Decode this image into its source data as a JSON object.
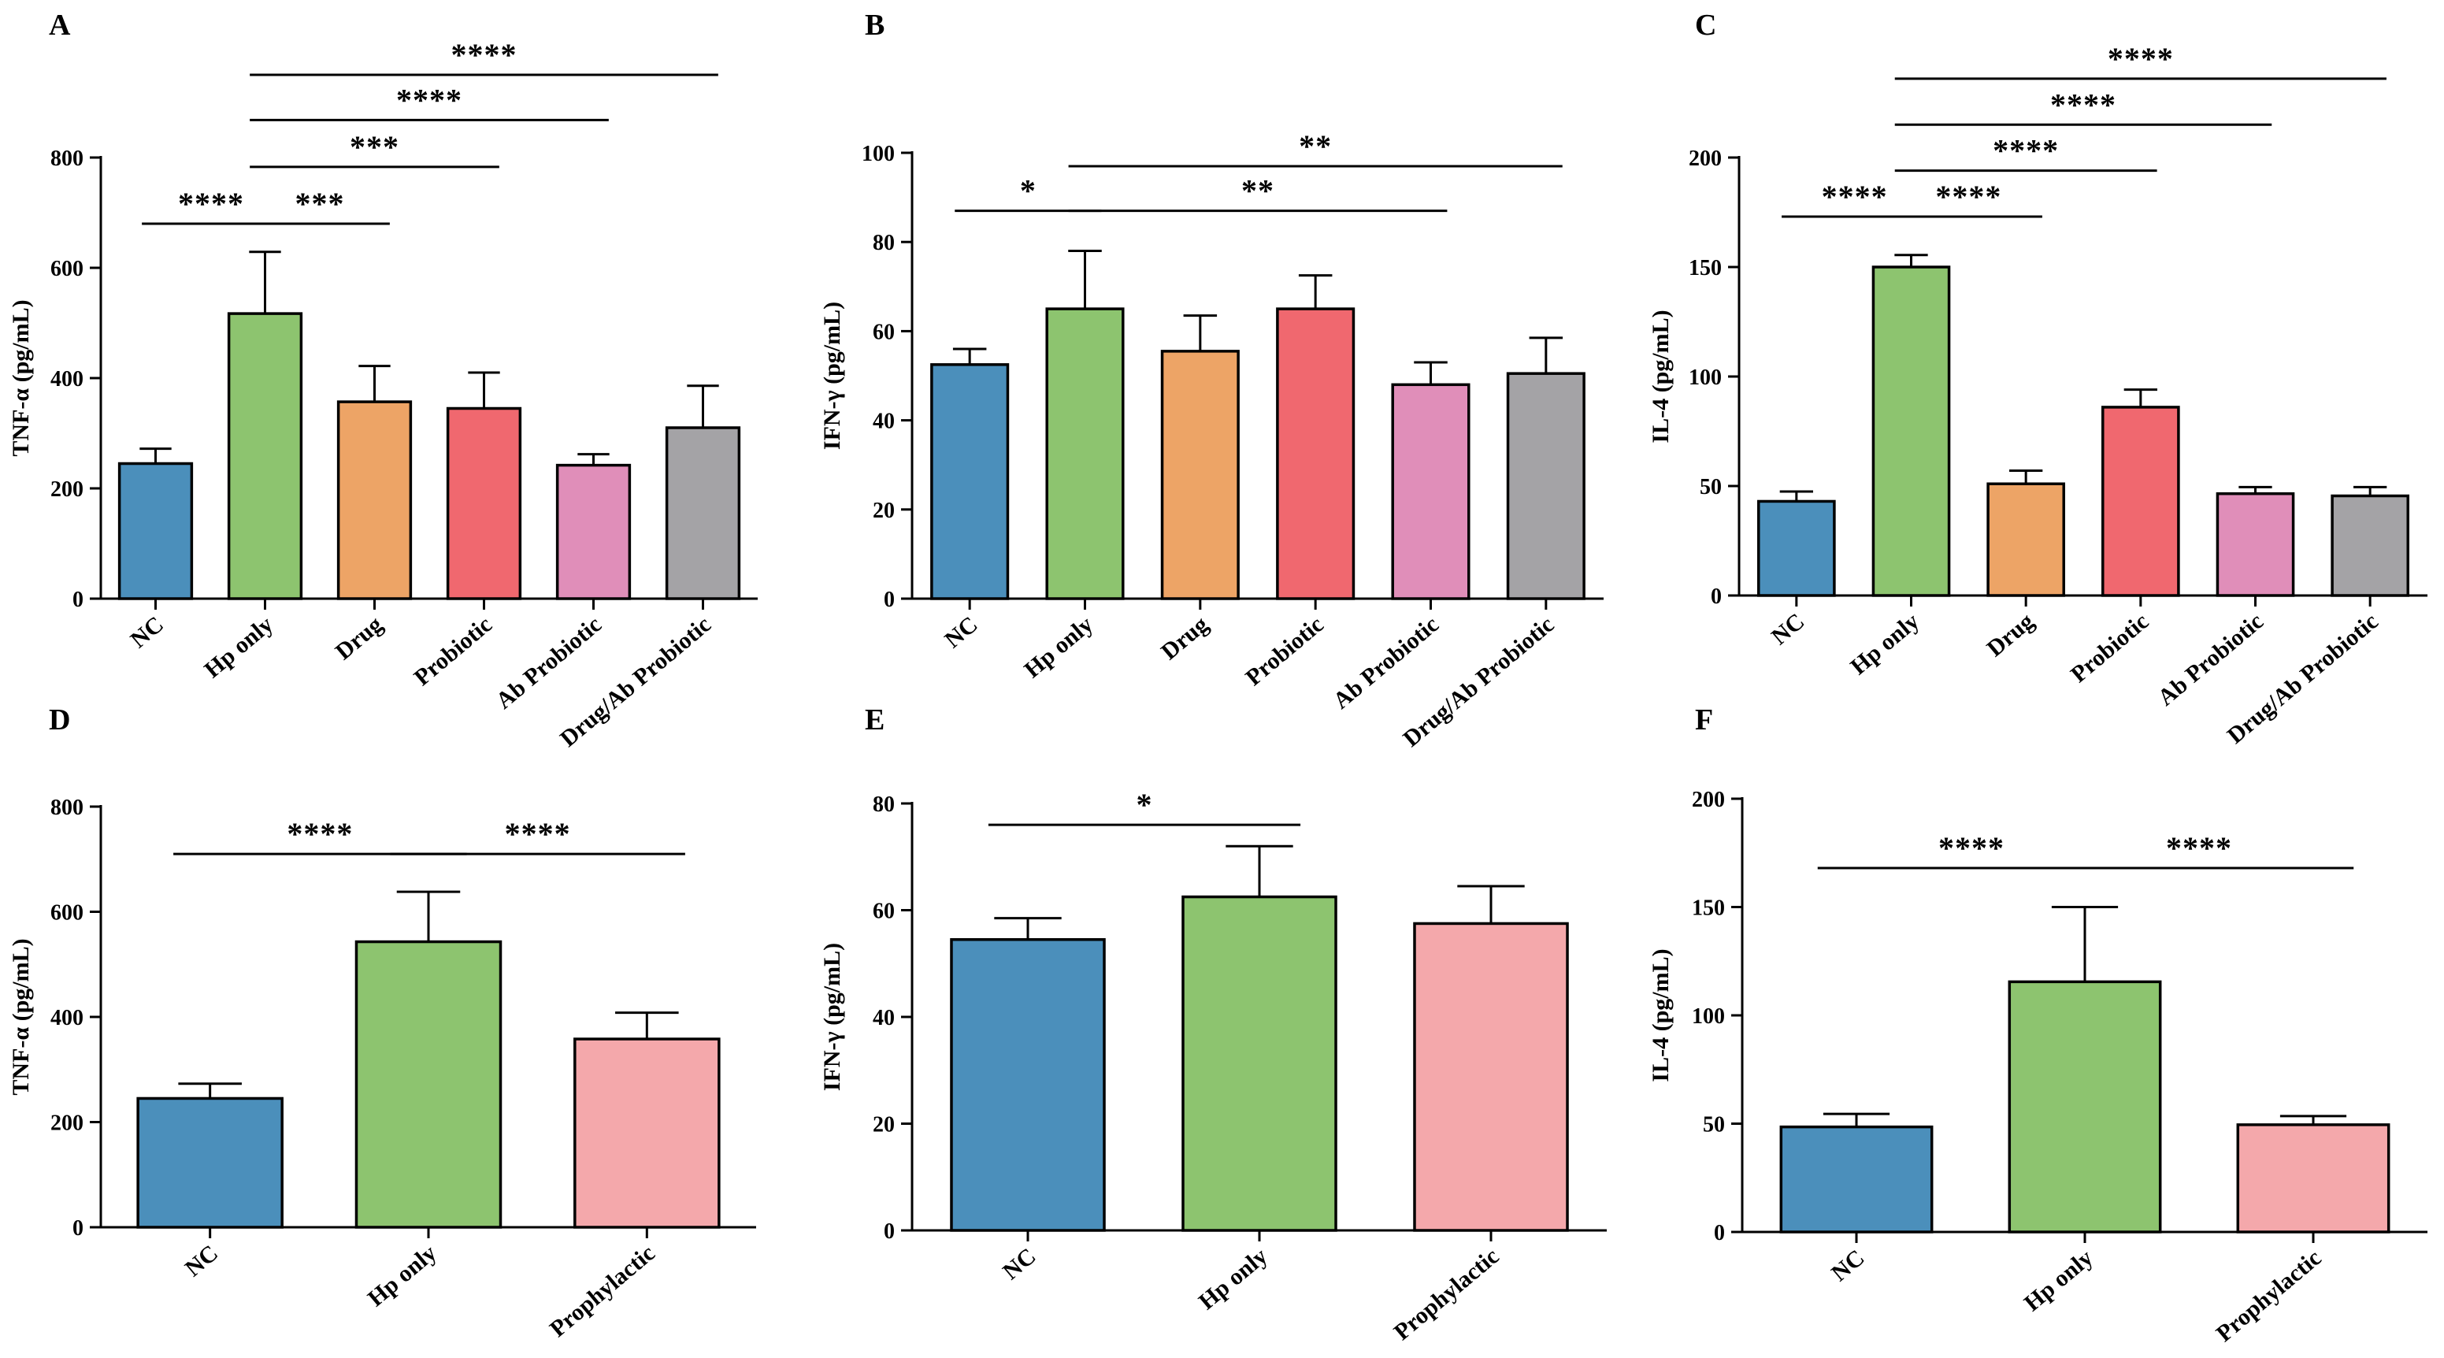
{
  "colors": {
    "nc": "#4b8fbb",
    "hp": "#8dc46f",
    "drug": "#eda466",
    "probiotic": "#f0686f",
    "ab_probiotic": "#e08eb9",
    "combo": "#a4a3a6",
    "prophylactic": "#f4a8ab"
  },
  "chart_data": [
    {
      "type": "bar",
      "panel": "A",
      "ylabel": "TNF-α (pg/mL)",
      "ylim": [
        0,
        800
      ],
      "yticks": [
        0,
        200,
        400,
        600,
        800
      ],
      "categories": [
        "NC",
        "Hp only",
        "Drug",
        "Probiotic",
        "Ab Probiotic",
        "Drug/Ab Probiotic"
      ],
      "values": [
        245,
        517,
        357,
        345,
        242,
        310
      ],
      "errors": [
        27,
        112,
        65,
        65,
        20,
        76
      ],
      "bar_colors": [
        "nc",
        "hp",
        "drug",
        "probiotic",
        "ab_probiotic",
        "combo"
      ],
      "significance": [
        {
          "from": 0,
          "to": 1,
          "label": "****",
          "y": 680
        },
        {
          "from": 1,
          "to": 2,
          "label": "***",
          "y": 680
        },
        {
          "from": 1,
          "to": 3,
          "label": "***",
          "y": 783
        },
        {
          "from": 1,
          "to": 4,
          "label": "****",
          "y": 868
        },
        {
          "from": 1,
          "to": 5,
          "label": "****",
          "y": 950
        }
      ]
    },
    {
      "type": "bar",
      "panel": "B",
      "ylabel": "IFN-γ (pg/mL)",
      "ylim": [
        0,
        100
      ],
      "yticks": [
        0,
        20,
        40,
        60,
        80,
        100
      ],
      "categories": [
        "NC",
        "Hp only",
        "Drug",
        "Probiotic",
        "Ab Probiotic",
        "Drug/Ab Probiotic"
      ],
      "values": [
        52.5,
        65,
        55.5,
        65,
        48,
        50.5
      ],
      "errors": [
        3.5,
        13,
        8,
        7.5,
        5,
        8
      ],
      "bar_colors": [
        "nc",
        "hp",
        "drug",
        "probiotic",
        "ab_probiotic",
        "combo"
      ],
      "significance": [
        {
          "from": 0,
          "to": 1,
          "label": "*",
          "y": 87
        },
        {
          "from": 1,
          "to": 4,
          "label": "**",
          "y": 87
        },
        {
          "from": 1,
          "to": 5,
          "label": "**",
          "y": 97
        }
      ]
    },
    {
      "type": "bar",
      "panel": "C",
      "ylabel": "IL-4 (pg/mL)",
      "ylim": [
        0,
        200
      ],
      "yticks": [
        0,
        50,
        100,
        150,
        200
      ],
      "categories": [
        "NC",
        "Hp only",
        "Drug",
        "Probiotic",
        "Ab Probiotic",
        "Drug/Ab Probiotic"
      ],
      "values": [
        43,
        150,
        51,
        86,
        46.5,
        45.5
      ],
      "errors": [
        4.5,
        5.5,
        6,
        8,
        3,
        4
      ],
      "bar_colors": [
        "nc",
        "hp",
        "drug",
        "probiotic",
        "ab_probiotic",
        "combo"
      ],
      "significance": [
        {
          "from": 0,
          "to": 1,
          "label": "****",
          "y": 173
        },
        {
          "from": 1,
          "to": 2,
          "label": "****",
          "y": 173
        },
        {
          "from": 1,
          "to": 3,
          "label": "****",
          "y": 194
        },
        {
          "from": 1,
          "to": 4,
          "label": "****",
          "y": 215
        },
        {
          "from": 1,
          "to": 5,
          "label": "****",
          "y": 236
        }
      ]
    },
    {
      "type": "bar",
      "panel": "D",
      "ylabel": "TNF-α (pg/mL)",
      "ylim": [
        0,
        800
      ],
      "yticks": [
        0,
        200,
        400,
        600,
        800
      ],
      "categories": [
        "NC",
        "Hp only",
        "Prophylactic"
      ],
      "values": [
        245,
        543,
        358
      ],
      "errors": [
        28,
        95,
        50
      ],
      "bar_colors": [
        "nc",
        "hp",
        "prophylactic"
      ],
      "significance": [
        {
          "from": 0,
          "to": 1,
          "label": "****",
          "y": 710
        },
        {
          "from": 1,
          "to": 2,
          "label": "****",
          "y": 710
        }
      ]
    },
    {
      "type": "bar",
      "panel": "E",
      "ylabel": "IFN-γ (pg/mL)",
      "ylim": [
        0,
        80
      ],
      "yticks": [
        0,
        20,
        40,
        60,
        80
      ],
      "categories": [
        "NC",
        "Hp only",
        "Prophylactic"
      ],
      "values": [
        54.5,
        62.5,
        57.5
      ],
      "errors": [
        4,
        9.5,
        7
      ],
      "bar_colors": [
        "nc",
        "hp",
        "prophylactic"
      ],
      "significance": [
        {
          "from": 0,
          "to": 1,
          "label": "*",
          "y": 76
        }
      ]
    },
    {
      "type": "bar",
      "panel": "F",
      "ylabel": "IL-4 (pg/mL)",
      "ylim": [
        0,
        200
      ],
      "yticks": [
        0,
        50,
        100,
        150,
        200
      ],
      "categories": [
        "NC",
        "Hp only",
        "Prophylactic"
      ],
      "values": [
        48.5,
        115.5,
        49.5
      ],
      "errors": [
        6,
        34.5,
        4
      ],
      "bar_colors": [
        "nc",
        "hp",
        "prophylactic"
      ],
      "significance": [
        {
          "from": 0,
          "to": 1,
          "label": "****",
          "y": 168
        },
        {
          "from": 1,
          "to": 2,
          "label": "****",
          "y": 168
        }
      ]
    }
  ]
}
